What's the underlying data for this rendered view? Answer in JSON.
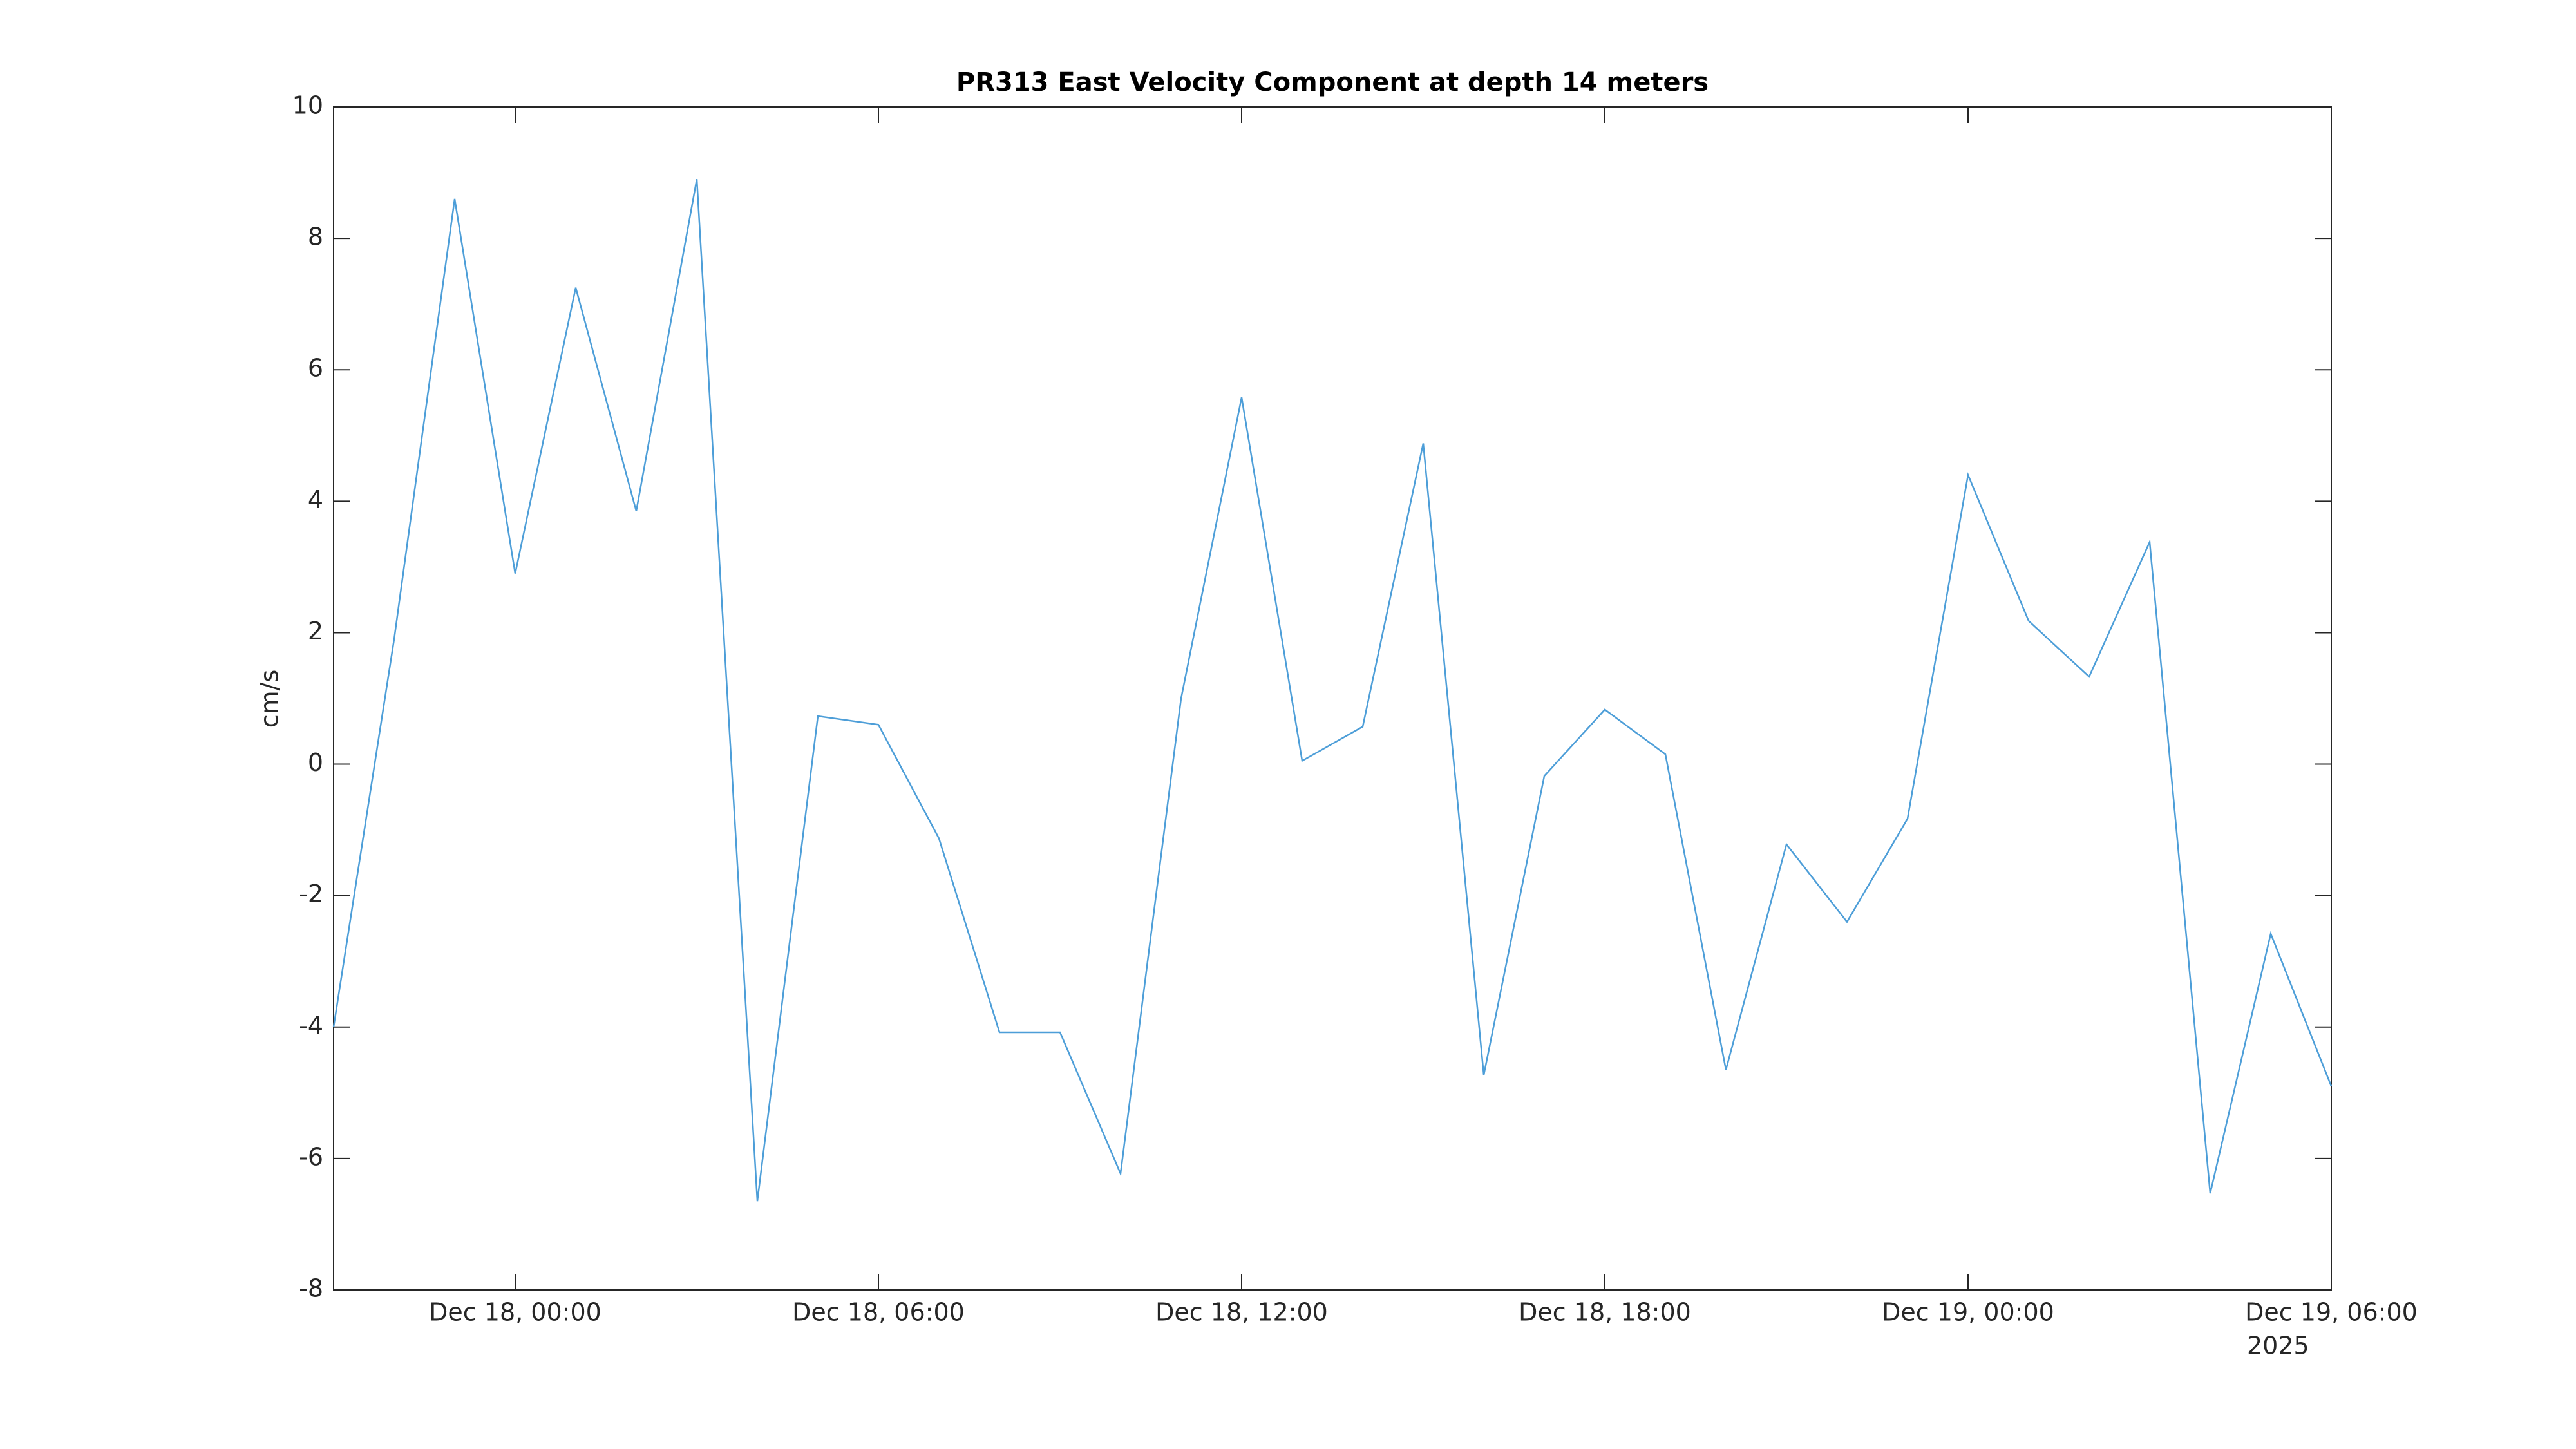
{
  "chart_data": {
    "type": "line",
    "title": "PR313 East Velocity Component at depth 14 meters",
    "y_label": "cm/s",
    "x_offset_label": "2025",
    "x": [
      "2025-12-17T21:00",
      "2025-12-17T22:00",
      "2025-12-17T23:00",
      "2025-12-18T00:00",
      "2025-12-18T01:00",
      "2025-12-18T02:00",
      "2025-12-18T03:00",
      "2025-12-18T04:00",
      "2025-12-18T05:00",
      "2025-12-18T06:00",
      "2025-12-18T07:00",
      "2025-12-18T08:00",
      "2025-12-18T09:00",
      "2025-12-18T10:00",
      "2025-12-18T11:00",
      "2025-12-18T12:00",
      "2025-12-18T13:00",
      "2025-12-18T14:00",
      "2025-12-18T15:00",
      "2025-12-18T16:00",
      "2025-12-18T17:00",
      "2025-12-18T18:00",
      "2025-12-18T19:00",
      "2025-12-18T20:00",
      "2025-12-18T21:00",
      "2025-12-18T22:00",
      "2025-12-18T23:00",
      "2025-12-19T00:00",
      "2025-12-19T01:00",
      "2025-12-19T02:00",
      "2025-12-19T03:00",
      "2025-12-19T04:00",
      "2025-12-19T05:00",
      "2025-12-19T06:00"
    ],
    "series": [
      {
        "color": "#4d9ed8",
        "values": [
          -4.0,
          1.9,
          8.6,
          2.9,
          7.25,
          3.85,
          8.9,
          -6.65,
          0.73,
          0.6,
          -1.13,
          -4.08,
          -4.08,
          -6.23,
          1.0,
          5.58,
          0.05,
          0.57,
          4.88,
          -4.73,
          -0.18,
          0.83,
          0.15,
          -4.65,
          -1.22,
          -2.4,
          -0.83,
          4.4,
          2.18,
          1.33,
          3.38,
          -6.53,
          -2.58,
          -4.9
        ]
      }
    ],
    "xlim": [
      "2025-12-17T21:00",
      "2025-12-19T06:00"
    ],
    "xticks": [
      {
        "value": "2025-12-18T00:00",
        "label": "Dec 18, 00:00"
      },
      {
        "value": "2025-12-18T06:00",
        "label": "Dec 18, 06:00"
      },
      {
        "value": "2025-12-18T12:00",
        "label": "Dec 18, 12:00"
      },
      {
        "value": "2025-12-18T18:00",
        "label": "Dec 18, 18:00"
      },
      {
        "value": "2025-12-19T00:00",
        "label": "Dec 19, 00:00"
      },
      {
        "value": "2025-12-19T06:00",
        "label": "Dec 19, 06:00"
      }
    ],
    "ylim": [
      -8,
      10
    ],
    "yticks": [
      -8,
      -6,
      -4,
      -2,
      0,
      2,
      4,
      6,
      8,
      10
    ],
    "grid": false
  }
}
